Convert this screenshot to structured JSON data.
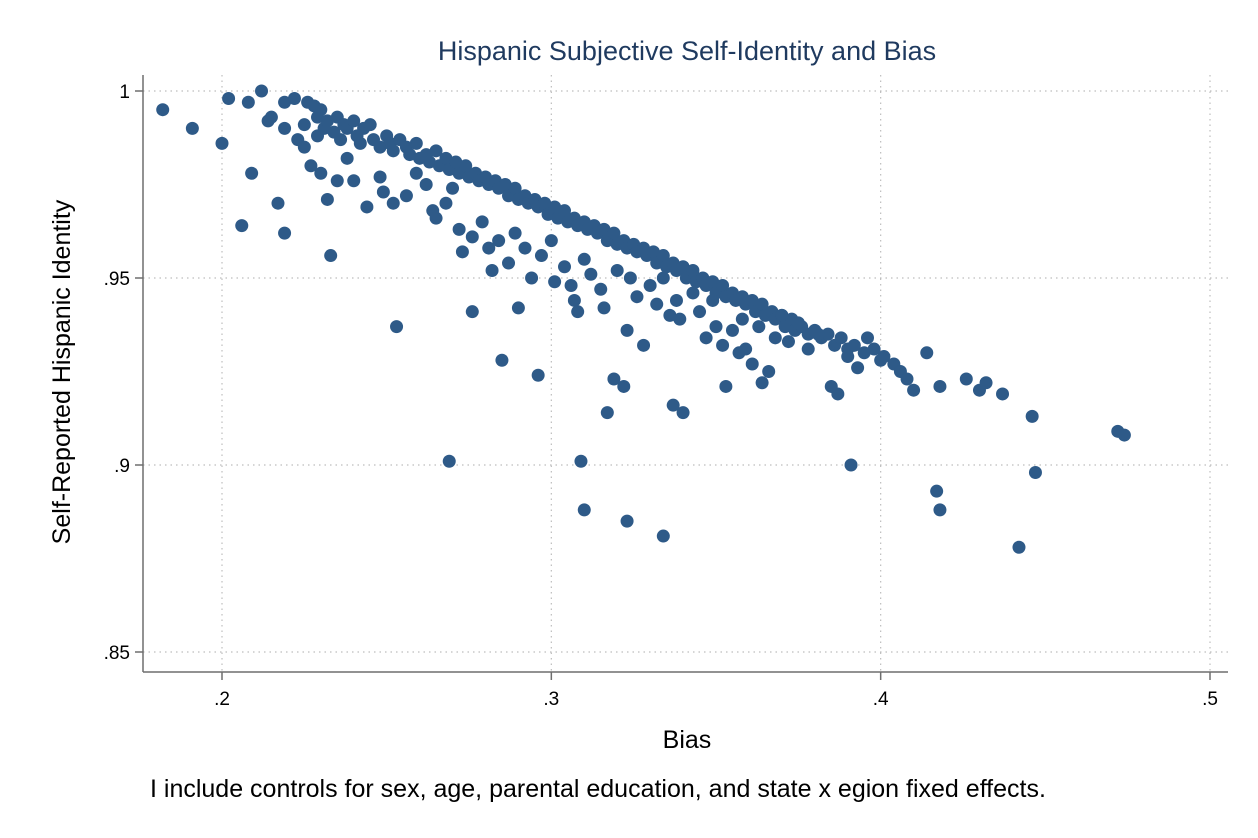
{
  "chart_data": {
    "type": "scatter",
    "title": "Hispanic Subjective Self-Identity and Bias",
    "xlabel": "Bias",
    "ylabel": "Self-Reported Hispanic Identity",
    "note": "I include controls for sex, age, parental education, and state x egion fixed effects.",
    "xlim": [
      0.18,
      0.51
    ],
    "ylim": [
      0.846,
      1.004
    ],
    "x_ticks": [
      0.2,
      0.3,
      0.4,
      0.5
    ],
    "x_tick_labels": [
      ".2",
      ".3",
      ".4",
      ".5"
    ],
    "y_ticks": [
      0.85,
      0.9,
      0.95,
      1.0
    ],
    "y_tick_labels": [
      ".85",
      ".9",
      ".95",
      "1"
    ],
    "grid": true,
    "colors": {
      "marker": "#2E5A88",
      "title": "#1F3A5F",
      "axis": "#6E6E6E",
      "grid": "#BDBDBD"
    },
    "points": [
      [
        0.182,
        0.995
      ],
      [
        0.191,
        0.99
      ],
      [
        0.2,
        0.986
      ],
      [
        0.202,
        0.998
      ],
      [
        0.208,
        0.997
      ],
      [
        0.212,
        1.0
      ],
      [
        0.214,
        0.992
      ],
      [
        0.215,
        0.993
      ],
      [
        0.219,
        0.997
      ],
      [
        0.219,
        0.99
      ],
      [
        0.222,
        0.998
      ],
      [
        0.223,
        0.987
      ],
      [
        0.225,
        0.985
      ],
      [
        0.225,
        0.991
      ],
      [
        0.226,
        0.997
      ],
      [
        0.228,
        0.996
      ],
      [
        0.229,
        0.993
      ],
      [
        0.229,
        0.988
      ],
      [
        0.23,
        0.995
      ],
      [
        0.231,
        0.99
      ],
      [
        0.232,
        0.992
      ],
      [
        0.234,
        0.989
      ],
      [
        0.235,
        0.993
      ],
      [
        0.236,
        0.987
      ],
      [
        0.237,
        0.991
      ],
      [
        0.238,
        0.99
      ],
      [
        0.24,
        0.992
      ],
      [
        0.241,
        0.988
      ],
      [
        0.242,
        0.986
      ],
      [
        0.243,
        0.99
      ],
      [
        0.245,
        0.991
      ],
      [
        0.246,
        0.987
      ],
      [
        0.248,
        0.985
      ],
      [
        0.25,
        0.988
      ],
      [
        0.251,
        0.986
      ],
      [
        0.252,
        0.984
      ],
      [
        0.254,
        0.987
      ],
      [
        0.256,
        0.985
      ],
      [
        0.257,
        0.983
      ],
      [
        0.259,
        0.986
      ],
      [
        0.26,
        0.982
      ],
      [
        0.262,
        0.983
      ],
      [
        0.263,
        0.981
      ],
      [
        0.265,
        0.984
      ],
      [
        0.266,
        0.98
      ],
      [
        0.268,
        0.982
      ],
      [
        0.269,
        0.979
      ],
      [
        0.271,
        0.981
      ],
      [
        0.272,
        0.978
      ],
      [
        0.274,
        0.98
      ],
      [
        0.275,
        0.977
      ],
      [
        0.277,
        0.978
      ],
      [
        0.278,
        0.976
      ],
      [
        0.28,
        0.977
      ],
      [
        0.281,
        0.975
      ],
      [
        0.283,
        0.976
      ],
      [
        0.284,
        0.974
      ],
      [
        0.286,
        0.975
      ],
      [
        0.287,
        0.972
      ],
      [
        0.289,
        0.974
      ],
      [
        0.29,
        0.971
      ],
      [
        0.292,
        0.972
      ],
      [
        0.293,
        0.97
      ],
      [
        0.295,
        0.971
      ],
      [
        0.296,
        0.969
      ],
      [
        0.298,
        0.97
      ],
      [
        0.299,
        0.967
      ],
      [
        0.301,
        0.969
      ],
      [
        0.302,
        0.966
      ],
      [
        0.304,
        0.968
      ],
      [
        0.305,
        0.965
      ],
      [
        0.307,
        0.966
      ],
      [
        0.308,
        0.964
      ],
      [
        0.31,
        0.965
      ],
      [
        0.311,
        0.963
      ],
      [
        0.313,
        0.964
      ],
      [
        0.314,
        0.962
      ],
      [
        0.316,
        0.963
      ],
      [
        0.317,
        0.96
      ],
      [
        0.319,
        0.962
      ],
      [
        0.32,
        0.959
      ],
      [
        0.322,
        0.96
      ],
      [
        0.323,
        0.958
      ],
      [
        0.325,
        0.959
      ],
      [
        0.326,
        0.957
      ],
      [
        0.328,
        0.958
      ],
      [
        0.329,
        0.956
      ],
      [
        0.331,
        0.957
      ],
      [
        0.332,
        0.954
      ],
      [
        0.334,
        0.956
      ],
      [
        0.335,
        0.953
      ],
      [
        0.337,
        0.954
      ],
      [
        0.338,
        0.952
      ],
      [
        0.34,
        0.953
      ],
      [
        0.341,
        0.95
      ],
      [
        0.343,
        0.952
      ],
      [
        0.344,
        0.949
      ],
      [
        0.346,
        0.95
      ],
      [
        0.347,
        0.948
      ],
      [
        0.349,
        0.949
      ],
      [
        0.35,
        0.946
      ],
      [
        0.352,
        0.948
      ],
      [
        0.353,
        0.945
      ],
      [
        0.355,
        0.946
      ],
      [
        0.356,
        0.944
      ],
      [
        0.358,
        0.945
      ],
      [
        0.359,
        0.943
      ],
      [
        0.361,
        0.944
      ],
      [
        0.362,
        0.941
      ],
      [
        0.364,
        0.943
      ],
      [
        0.365,
        0.94
      ],
      [
        0.367,
        0.941
      ],
      [
        0.368,
        0.939
      ],
      [
        0.37,
        0.94
      ],
      [
        0.371,
        0.937
      ],
      [
        0.373,
        0.939
      ],
      [
        0.374,
        0.936
      ],
      [
        0.376,
        0.937
      ],
      [
        0.378,
        0.935
      ],
      [
        0.38,
        0.936
      ],
      [
        0.382,
        0.934
      ],
      [
        0.384,
        0.935
      ],
      [
        0.386,
        0.932
      ],
      [
        0.388,
        0.934
      ],
      [
        0.39,
        0.931
      ],
      [
        0.392,
        0.932
      ],
      [
        0.395,
        0.93
      ],
      [
        0.398,
        0.931
      ],
      [
        0.401,
        0.929
      ],
      [
        0.404,
        0.927
      ],
      [
        0.406,
        0.925
      ],
      [
        0.408,
        0.923
      ],
      [
        0.41,
        0.92
      ],
      [
        0.414,
        0.93
      ],
      [
        0.418,
        0.921
      ],
      [
        0.426,
        0.923
      ],
      [
        0.43,
        0.92
      ],
      [
        0.432,
        0.922
      ],
      [
        0.437,
        0.919
      ],
      [
        0.446,
        0.913
      ],
      [
        0.472,
        0.909
      ],
      [
        0.474,
        0.908
      ],
      [
        0.206,
        0.964
      ],
      [
        0.209,
        0.978
      ],
      [
        0.217,
        0.97
      ],
      [
        0.219,
        0.962
      ],
      [
        0.233,
        0.956
      ],
      [
        0.227,
        0.98
      ],
      [
        0.23,
        0.978
      ],
      [
        0.232,
        0.971
      ],
      [
        0.235,
        0.976
      ],
      [
        0.238,
        0.982
      ],
      [
        0.24,
        0.976
      ],
      [
        0.244,
        0.969
      ],
      [
        0.248,
        0.977
      ],
      [
        0.249,
        0.973
      ],
      [
        0.253,
        0.937
      ],
      [
        0.252,
        0.97
      ],
      [
        0.256,
        0.972
      ],
      [
        0.259,
        0.978
      ],
      [
        0.262,
        0.975
      ],
      [
        0.264,
        0.968
      ],
      [
        0.265,
        0.966
      ],
      [
        0.268,
        0.97
      ],
      [
        0.27,
        0.974
      ],
      [
        0.272,
        0.963
      ],
      [
        0.273,
        0.957
      ],
      [
        0.276,
        0.961
      ],
      [
        0.276,
        0.941
      ],
      [
        0.279,
        0.965
      ],
      [
        0.281,
        0.958
      ],
      [
        0.282,
        0.952
      ],
      [
        0.284,
        0.96
      ],
      [
        0.285,
        0.928
      ],
      [
        0.287,
        0.954
      ],
      [
        0.289,
        0.962
      ],
      [
        0.29,
        0.942
      ],
      [
        0.292,
        0.958
      ],
      [
        0.294,
        0.95
      ],
      [
        0.296,
        0.924
      ],
      [
        0.297,
        0.956
      ],
      [
        0.3,
        0.96
      ],
      [
        0.301,
        0.949
      ],
      [
        0.304,
        0.953
      ],
      [
        0.306,
        0.948
      ],
      [
        0.307,
        0.944
      ],
      [
        0.308,
        0.941
      ],
      [
        0.31,
        0.955
      ],
      [
        0.312,
        0.951
      ],
      [
        0.315,
        0.947
      ],
      [
        0.316,
        0.942
      ],
      [
        0.317,
        0.914
      ],
      [
        0.319,
        0.923
      ],
      [
        0.32,
        0.952
      ],
      [
        0.322,
        0.921
      ],
      [
        0.323,
        0.936
      ],
      [
        0.324,
        0.95
      ],
      [
        0.326,
        0.945
      ],
      [
        0.328,
        0.932
      ],
      [
        0.33,
        0.948
      ],
      [
        0.332,
        0.943
      ],
      [
        0.334,
        0.95
      ],
      [
        0.336,
        0.94
      ],
      [
        0.337,
        0.916
      ],
      [
        0.338,
        0.944
      ],
      [
        0.339,
        0.939
      ],
      [
        0.34,
        0.914
      ],
      [
        0.343,
        0.946
      ],
      [
        0.345,
        0.941
      ],
      [
        0.347,
        0.934
      ],
      [
        0.349,
        0.944
      ],
      [
        0.35,
        0.937
      ],
      [
        0.352,
        0.932
      ],
      [
        0.353,
        0.921
      ],
      [
        0.355,
        0.936
      ],
      [
        0.357,
        0.93
      ],
      [
        0.358,
        0.939
      ],
      [
        0.359,
        0.931
      ],
      [
        0.361,
        0.927
      ],
      [
        0.363,
        0.937
      ],
      [
        0.364,
        0.922
      ],
      [
        0.366,
        0.925
      ],
      [
        0.368,
        0.934
      ],
      [
        0.37,
        0.94
      ],
      [
        0.372,
        0.933
      ],
      [
        0.375,
        0.938
      ],
      [
        0.378,
        0.931
      ],
      [
        0.381,
        0.935
      ],
      [
        0.385,
        0.921
      ],
      [
        0.387,
        0.919
      ],
      [
        0.39,
        0.929
      ],
      [
        0.393,
        0.926
      ],
      [
        0.396,
        0.934
      ],
      [
        0.4,
        0.928
      ],
      [
        0.269,
        0.901
      ],
      [
        0.309,
        0.901
      ],
      [
        0.31,
        0.888
      ],
      [
        0.323,
        0.885
      ],
      [
        0.334,
        0.881
      ],
      [
        0.391,
        0.9
      ],
      [
        0.417,
        0.893
      ],
      [
        0.418,
        0.888
      ],
      [
        0.442,
        0.878
      ],
      [
        0.447,
        0.898
      ]
    ]
  }
}
